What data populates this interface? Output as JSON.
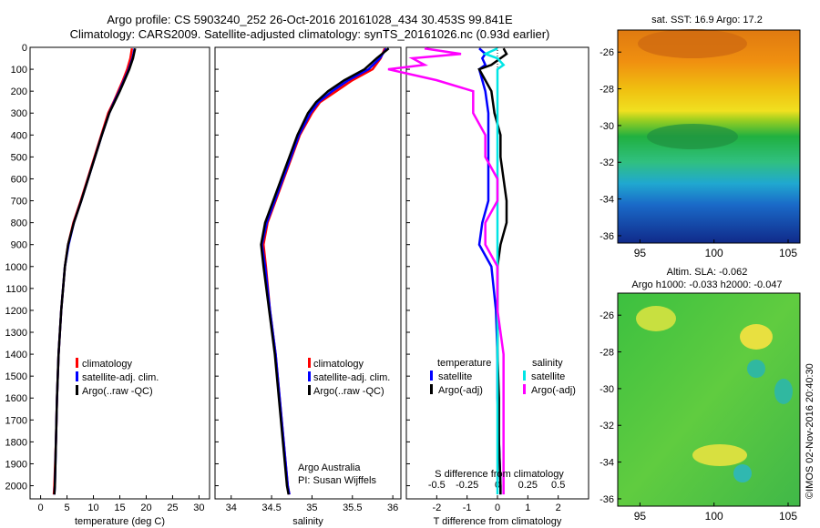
{
  "title": {
    "line1": "Argo profile: CS 5903240_252 26-Oct-2016 20161028_434 30.453S 99.841E",
    "line2": "Climatology: CARS2009. Satellite-adjusted climatology: synTS_20161026.nc (0.93d earlier)"
  },
  "colors": {
    "climatology": "#ff0000",
    "satellite": "#0000ff",
    "argo": "#000000",
    "satellite_sal": "#00e5e5",
    "argo_sal": "#ff00ff"
  },
  "chart_data": [
    {
      "id": "temperature",
      "type": "line",
      "xlabel": "temperature (deg C)",
      "xlim": [
        -2,
        32
      ],
      "ylim": [
        2060,
        0
      ],
      "xticks": [
        "0",
        "5",
        "10",
        "15",
        "20",
        "25",
        "30"
      ],
      "yticks": [
        "0",
        "100",
        "200",
        "300",
        "400",
        "500",
        "600",
        "700",
        "800",
        "900",
        "1000",
        "1100",
        "1200",
        "1300",
        "1400",
        "1500",
        "1600",
        "1700",
        "1800",
        "1900",
        "2000"
      ],
      "depth": [
        5,
        50,
        100,
        150,
        200,
        250,
        300,
        400,
        500,
        600,
        700,
        800,
        900,
        1000,
        1200,
        1400,
        1600,
        1800,
        2000,
        2040
      ],
      "series": [
        {
          "name": "climatology",
          "values": [
            17.3,
            17.0,
            16.4,
            15.6,
            14.7,
            13.8,
            12.8,
            11.5,
            10.2,
            8.9,
            7.6,
            6.2,
            5.2,
            4.6,
            3.9,
            3.4,
            3.1,
            2.9,
            2.6,
            2.5
          ]
        },
        {
          "name": "satellite-adj. clim.",
          "values": [
            17.8,
            17.4,
            16.7,
            15.8,
            14.9,
            13.9,
            13.0,
            11.6,
            10.3,
            9.0,
            7.7,
            6.3,
            5.3,
            4.6,
            3.9,
            3.4,
            3.1,
            2.9,
            2.7,
            2.6
          ]
        },
        {
          "name": "Argo(..raw -QC)",
          "values": [
            17.9,
            17.5,
            16.8,
            15.9,
            15.0,
            14.0,
            13.0,
            11.6,
            10.3,
            9.0,
            7.7,
            6.3,
            5.2,
            4.6,
            3.9,
            3.4,
            3.1,
            2.9,
            2.7,
            2.6
          ]
        }
      ],
      "legend": [
        "climatology",
        "satellite-adj. clim.",
        "Argo(..raw -QC)"
      ]
    },
    {
      "id": "salinity",
      "type": "line",
      "xlabel": "salinity",
      "xlim": [
        33.8,
        36.1
      ],
      "ylim": [
        2060,
        0
      ],
      "xticks": [
        "34",
        "34.5",
        "35",
        "35.5",
        "36"
      ],
      "depth": [
        5,
        50,
        100,
        150,
        200,
        250,
        300,
        400,
        500,
        600,
        700,
        800,
        900,
        1000,
        1200,
        1400,
        1600,
        1800,
        2000,
        2040
      ],
      "series": [
        {
          "name": "climatology",
          "values": [
            35.9,
            35.85,
            35.75,
            35.5,
            35.3,
            35.1,
            35.0,
            34.85,
            34.75,
            34.65,
            34.55,
            34.45,
            34.4,
            34.43,
            34.48,
            34.55,
            34.6,
            34.65,
            34.7,
            34.72
          ]
        },
        {
          "name": "satellite-adj. clim.",
          "values": [
            35.92,
            35.84,
            35.7,
            35.45,
            35.25,
            35.08,
            34.98,
            34.84,
            34.74,
            34.64,
            34.54,
            34.44,
            34.38,
            34.42,
            34.48,
            34.55,
            34.6,
            34.65,
            34.7,
            34.72
          ]
        },
        {
          "name": "Argo(..raw -QC)",
          "values": [
            35.95,
            35.8,
            35.65,
            35.4,
            35.2,
            35.05,
            34.95,
            34.82,
            34.72,
            34.62,
            34.52,
            34.42,
            34.37,
            34.4,
            34.47,
            34.54,
            34.59,
            34.64,
            34.69,
            34.71
          ]
        }
      ],
      "legend": [
        "climatology",
        "satellite-adj. clim.",
        "Argo(..raw -QC)"
      ],
      "annotation": [
        "Argo Australia",
        "PI: Susan Wijffels"
      ]
    },
    {
      "id": "difference",
      "type": "line",
      "xlabel": "T difference from climatology",
      "xlabel_top": "S difference from climatology",
      "xlim": [
        -3,
        3
      ],
      "ylim": [
        2060,
        0
      ],
      "xticks": [
        "-2",
        "-1",
        "0",
        "1",
        "2"
      ],
      "sticks": [
        "-0.5",
        "-0.25",
        "0",
        "0.25",
        "0.5"
      ],
      "depth": [
        5,
        30,
        50,
        80,
        100,
        150,
        200,
        300,
        400,
        500,
        600,
        700,
        800,
        900,
        1000,
        1200,
        1400,
        1600,
        1800,
        2000,
        2040
      ],
      "series": [
        {
          "name": "temperature satellite",
          "values": [
            -0.6,
            -0.4,
            -0.5,
            -0.4,
            -0.6,
            -0.5,
            -0.4,
            -0.3,
            -0.3,
            -0.3,
            -0.3,
            -0.3,
            -0.5,
            -0.6,
            -0.2,
            -0.05,
            0.0,
            0.0,
            0.05,
            0.1,
            0.1
          ]
        },
        {
          "name": "temperature Argo(-adj)",
          "values": [
            0.2,
            0.3,
            0.1,
            -0.2,
            -0.6,
            -0.4,
            -0.2,
            -0.1,
            0.1,
            0.1,
            0.2,
            0.3,
            0.3,
            0.1,
            0.0,
            0.0,
            0.0,
            0.05,
            0.05,
            0.1,
            0.1
          ]
        },
        {
          "name": "salinity satellite",
          "values": [
            0.0,
            -0.1,
            0.0,
            0.05,
            0.0,
            0.0,
            0.0,
            0.0,
            0.0,
            0.0,
            0.0,
            0.0,
            0.0,
            0.0,
            0.0,
            0.0,
            0.0,
            0.0,
            0.0,
            0.0,
            0.0
          ]
        },
        {
          "name": "salinity Argo(-adj)",
          "values": [
            -0.6,
            -0.3,
            -0.7,
            -0.6,
            -0.9,
            -0.5,
            -0.2,
            -0.2,
            -0.1,
            -0.1,
            0.0,
            0.0,
            -0.1,
            -0.1,
            0.0,
            0.0,
            0.05,
            0.05,
            0.05,
            0.05,
            0.05
          ]
        }
      ],
      "legend_temperature": {
        "title": "temperature",
        "items": [
          "satellite",
          "Argo(-adj)"
        ]
      },
      "legend_salinity": {
        "title": "salinity",
        "items": [
          "satellite",
          "Argo(-adj)"
        ]
      }
    },
    {
      "id": "sst_map",
      "type": "heatmap",
      "title": "sat. SST: 16.9 Argo: 17.2",
      "xticks": [
        "95",
        "100",
        "105"
      ],
      "yticks": [
        "-26",
        "-28",
        "-30",
        "-32",
        "-34",
        "-36"
      ],
      "xlim": [
        93.5,
        105.8
      ],
      "ylim": [
        -36.4,
        -24.8
      ]
    },
    {
      "id": "sla_map",
      "type": "heatmap",
      "title_line1": "Altim. SLA: -0.062",
      "title_line2": "Argo h1000: -0.033 h2000: -0.047",
      "xticks": [
        "95",
        "100",
        "105"
      ],
      "yticks": [
        "-26",
        "-28",
        "-30",
        "-32",
        "-34",
        "-36"
      ],
      "xlim": [
        93.5,
        105.8
      ],
      "ylim": [
        -36.4,
        -24.8
      ]
    }
  ],
  "credit": "©IMOS 02-Nov-2016 20:40:30"
}
